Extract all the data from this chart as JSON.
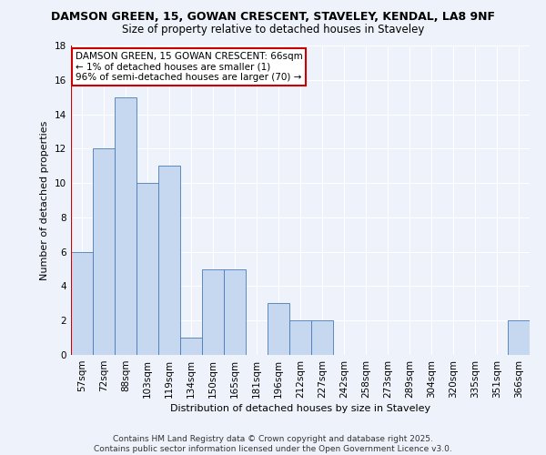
{
  "title1": "DAMSON GREEN, 15, GOWAN CRESCENT, STAVELEY, KENDAL, LA8 9NF",
  "title2": "Size of property relative to detached houses in Staveley",
  "xlabel": "Distribution of detached houses by size in Staveley",
  "ylabel": "Number of detached properties",
  "categories": [
    "57sqm",
    "72sqm",
    "88sqm",
    "103sqm",
    "119sqm",
    "134sqm",
    "150sqm",
    "165sqm",
    "181sqm",
    "196sqm",
    "212sqm",
    "227sqm",
    "242sqm",
    "258sqm",
    "273sqm",
    "289sqm",
    "304sqm",
    "320sqm",
    "335sqm",
    "351sqm",
    "366sqm"
  ],
  "values": [
    6,
    12,
    15,
    10,
    11,
    1,
    5,
    5,
    0,
    3,
    2,
    2,
    0,
    0,
    0,
    0,
    0,
    0,
    0,
    0,
    2
  ],
  "bar_color": "#c5d8f0",
  "bar_edge_color": "#4a7ab5",
  "annotation_text": "DAMSON GREEN, 15 GOWAN CRESCENT: 66sqm\n← 1% of detached houses are smaller (1)\n96% of semi-detached houses are larger (70) →",
  "annotation_box_color": "#ffffff",
  "annotation_box_edge_color": "#cc0000",
  "red_line_x": 0.6,
  "ylim": [
    0,
    18
  ],
  "yticks": [
    0,
    2,
    4,
    6,
    8,
    10,
    12,
    14,
    16,
    18
  ],
  "footer": "Contains HM Land Registry data © Crown copyright and database right 2025.\nContains public sector information licensed under the Open Government Licence v3.0.",
  "bg_color": "#eef2fa",
  "grid_color": "#ffffff",
  "title1_fontsize": 9,
  "title2_fontsize": 8.5,
  "axis_label_fontsize": 8,
  "tick_fontsize": 7.5,
  "annot_fontsize": 7.5,
  "footer_fontsize": 6.5
}
